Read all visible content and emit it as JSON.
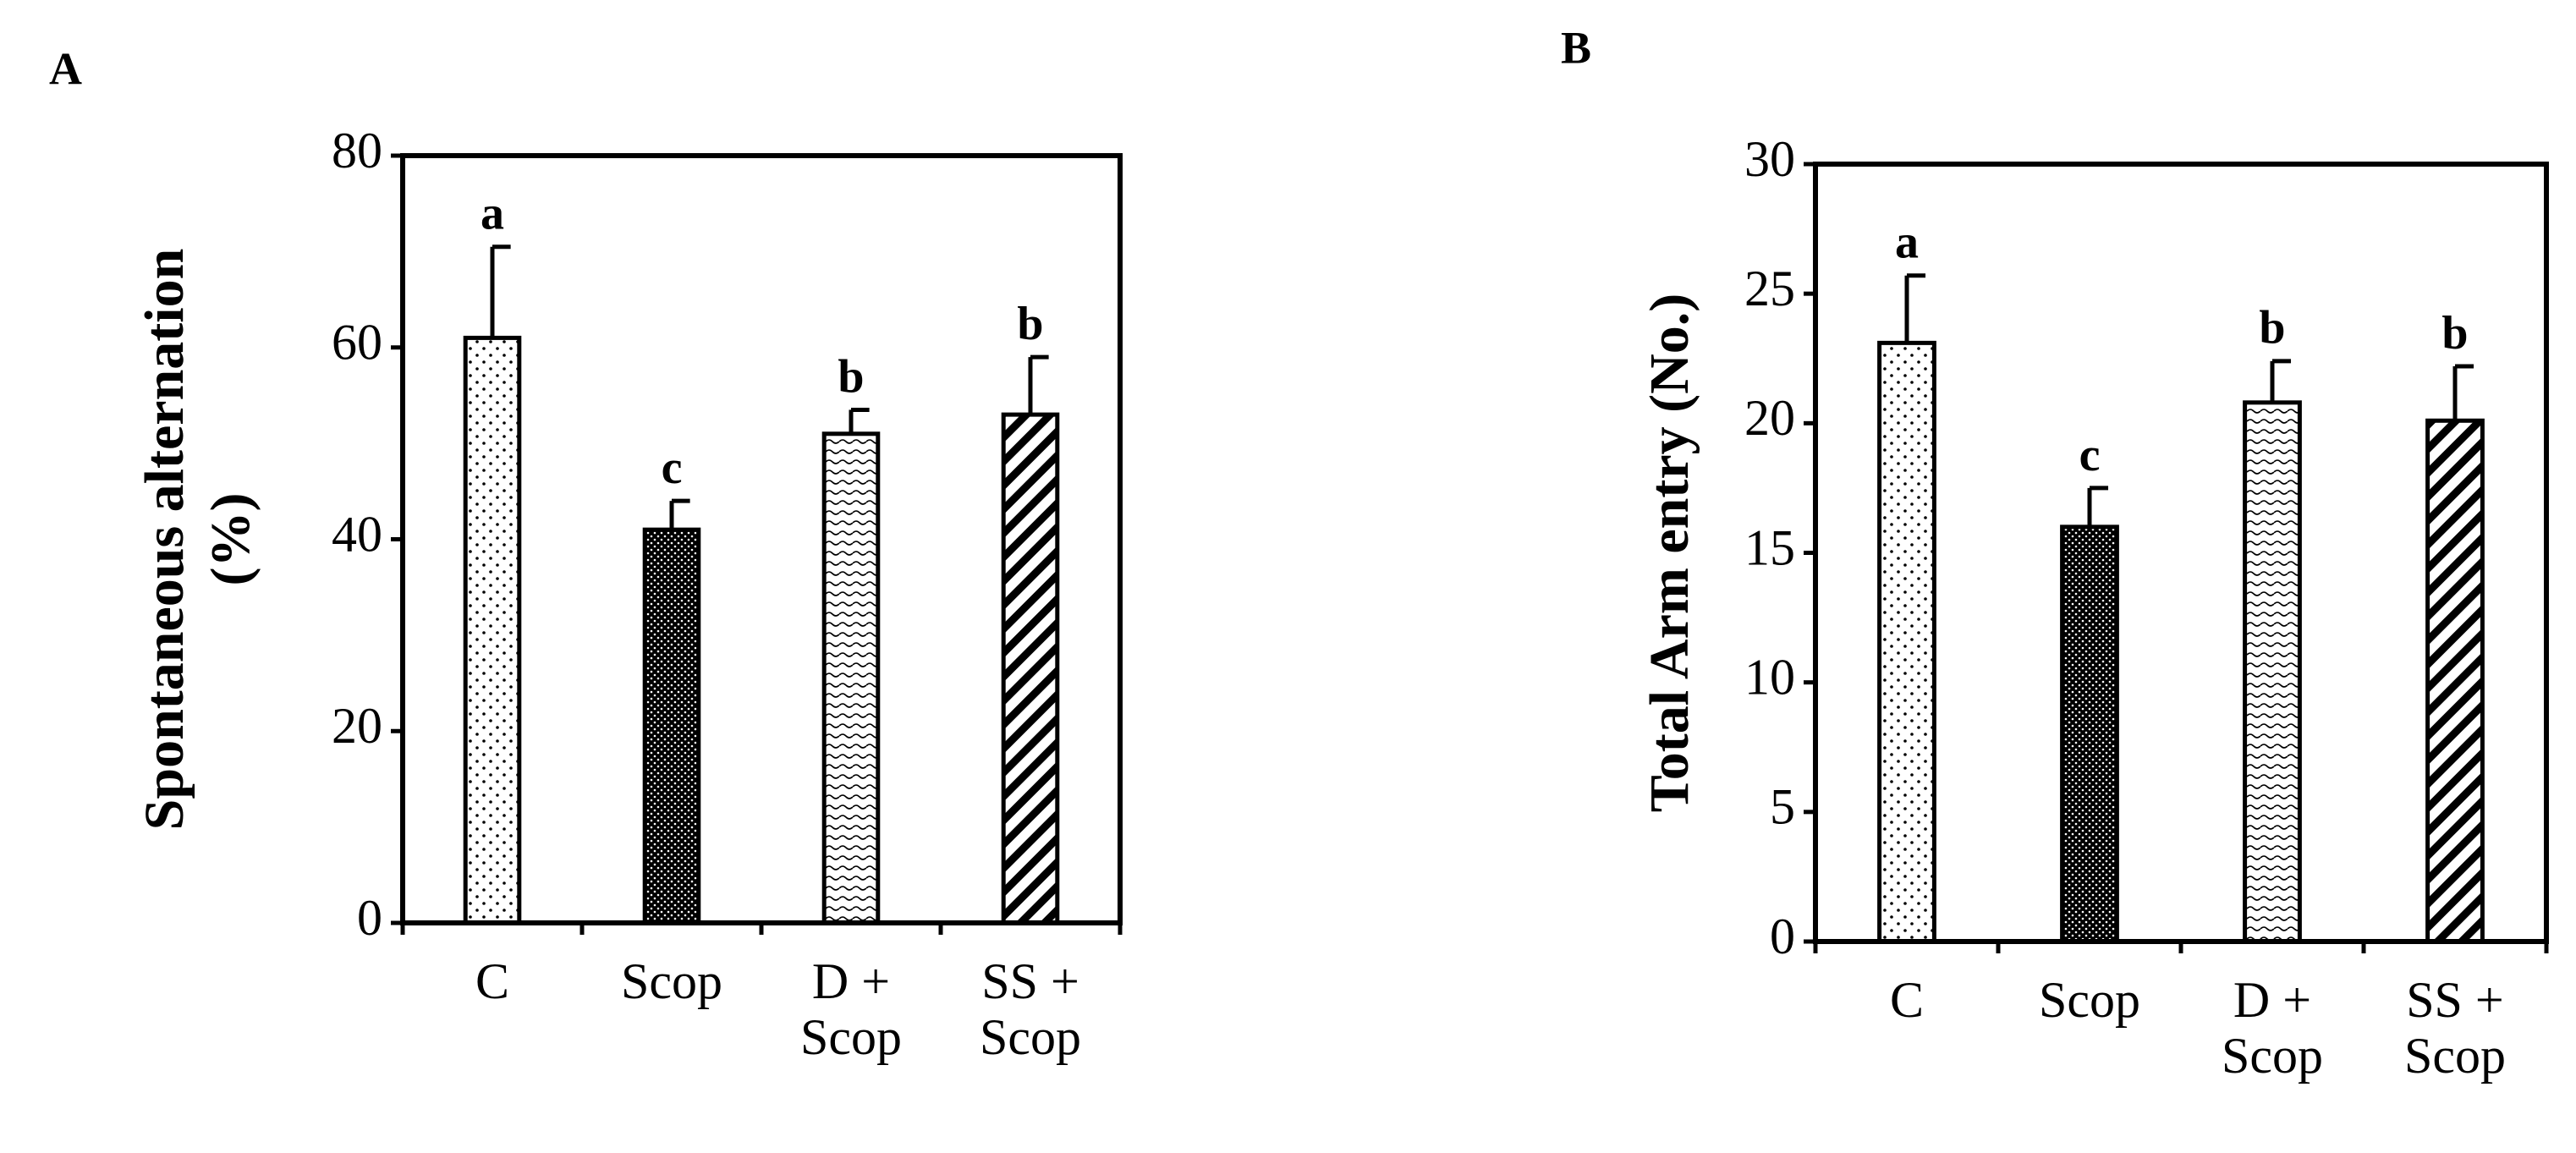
{
  "chart_data": [
    {
      "type": "bar",
      "panel_label": "A",
      "ylabel": [
        "Spontaneous alternation",
        "(%)"
      ],
      "categories": [
        "C",
        "Scop",
        "D + Scop",
        "SS + Scop"
      ],
      "values": [
        61,
        41,
        51,
        53
      ],
      "errors": [
        9.5,
        3,
        2.5,
        6
      ],
      "significance_letters": [
        "a",
        "c",
        "b",
        "b"
      ],
      "patterns": [
        "sparse-dots",
        "dense-dots",
        "waves",
        "diagonal"
      ],
      "color": "#000000",
      "ylim": [
        0,
        80
      ],
      "yticks": [
        0,
        20,
        40,
        60,
        80
      ],
      "grid": false
    },
    {
      "type": "bar",
      "panel_label": "B",
      "ylabel": [
        "Total Arm entry (No.)"
      ],
      "categories": [
        "C",
        "Scop",
        "D + Scop",
        "SS + Scop"
      ],
      "values": [
        23.1,
        16,
        20.8,
        20.1
      ],
      "errors": [
        2.6,
        1.5,
        1.6,
        2.1
      ],
      "significance_letters": [
        "a",
        "c",
        "b",
        "b"
      ],
      "patterns": [
        "sparse-dots",
        "dense-dots",
        "waves",
        "diagonal"
      ],
      "color": "#000000",
      "ylim": [
        0,
        30
      ],
      "yticks": [
        0,
        5,
        10,
        15,
        20,
        25,
        30
      ],
      "grid": false
    }
  ]
}
